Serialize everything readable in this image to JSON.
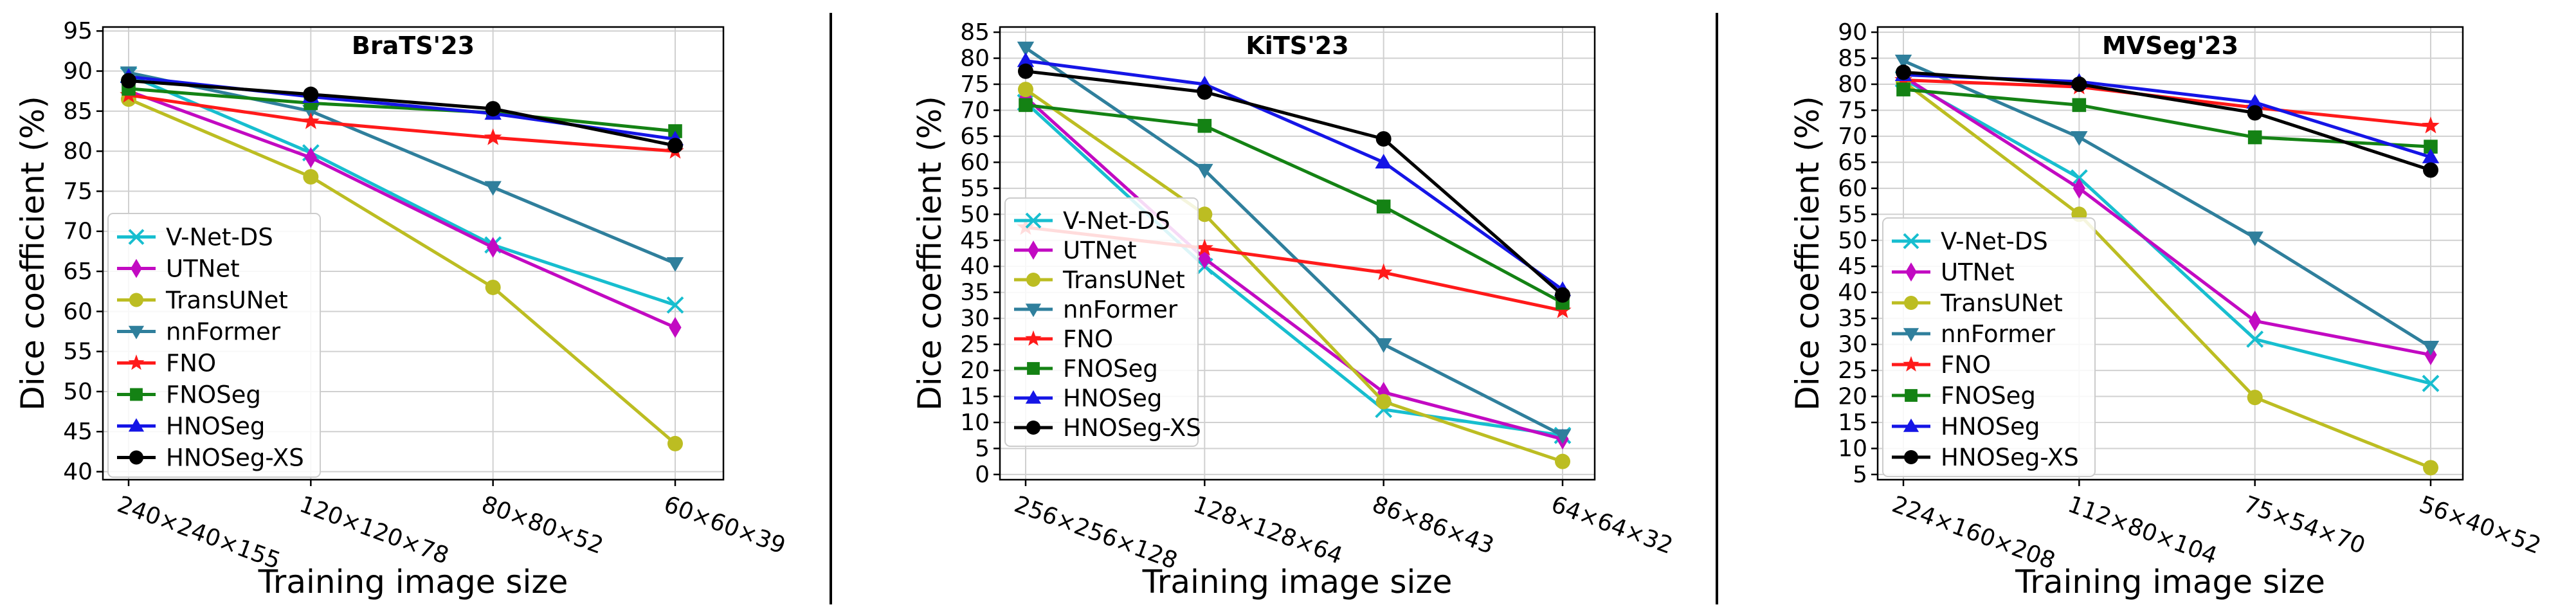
{
  "chart_data": [
    {
      "type": "line",
      "title": "BraTS'23",
      "xlabel": "Training image size",
      "ylabel": "Dice coefficient (%)",
      "categories": [
        "240×240×155",
        "120×120×78",
        "80×80×52",
        "60×60×39"
      ],
      "ylim": [
        39,
        95.5
      ],
      "yticks": [
        40,
        45,
        50,
        55,
        60,
        65,
        70,
        75,
        80,
        85,
        90,
        95
      ],
      "grid": true,
      "legend": "lower-left",
      "series": [
        {
          "name": "V-Net-DS",
          "color": "#17becf",
          "marker": "x",
          "values": [
            89.5,
            79.8,
            68.3,
            60.8
          ]
        },
        {
          "name": "UTNet",
          "color": "#c20ac2",
          "marker": "diamond",
          "values": [
            87.5,
            79.2,
            68.0,
            58.0
          ]
        },
        {
          "name": "TransUNet",
          "color": "#bcbd22",
          "marker": "circle",
          "values": [
            86.5,
            76.8,
            63.0,
            43.5
          ]
        },
        {
          "name": "nnFormer",
          "color": "#2f7f9c",
          "marker": "triangle-down",
          "values": [
            89.8,
            85.0,
            75.5,
            66.0
          ]
        },
        {
          "name": "FNO",
          "color": "#ff1a1a",
          "marker": "star",
          "values": [
            87.0,
            83.7,
            81.7,
            80.0
          ]
        },
        {
          "name": "FNOSeg",
          "color": "#148214",
          "marker": "square",
          "values": [
            87.8,
            86.0,
            84.8,
            82.5
          ]
        },
        {
          "name": "HNOSeg",
          "color": "#1515e6",
          "marker": "triangle-up",
          "values": [
            89.3,
            86.8,
            84.7,
            81.5
          ]
        },
        {
          "name": "HNOSeg-XS",
          "color": "#000000",
          "marker": "circle",
          "values": [
            88.8,
            87.1,
            85.3,
            80.7
          ]
        }
      ]
    },
    {
      "type": "line",
      "title": "KiTS'23",
      "xlabel": "Training image size",
      "ylabel": "Dice coefficient (%)",
      "categories": [
        "256×256×128",
        "128×128×64",
        "86×86×43",
        "64×64×32"
      ],
      "ylim": [
        -1,
        86
      ],
      "yticks": [
        0,
        5,
        10,
        15,
        20,
        25,
        30,
        35,
        40,
        45,
        50,
        55,
        60,
        65,
        70,
        75,
        80,
        85
      ],
      "grid": true,
      "legend": "lower-left",
      "series": [
        {
          "name": "V-Net-DS",
          "color": "#17becf",
          "marker": "x",
          "values": [
            71.5,
            40.0,
            12.5,
            7.5
          ]
        },
        {
          "name": "UTNet",
          "color": "#c20ac2",
          "marker": "diamond",
          "values": [
            72.5,
            41.5,
            15.8,
            6.8
          ]
        },
        {
          "name": "TransUNet",
          "color": "#bcbd22",
          "marker": "circle",
          "values": [
            74.0,
            50.0,
            14.0,
            2.5
          ]
        },
        {
          "name": "nnFormer",
          "color": "#2f7f9c",
          "marker": "triangle-down",
          "values": [
            82.0,
            58.5,
            25.0,
            7.5
          ]
        },
        {
          "name": "FNO",
          "color": "#ff1a1a",
          "marker": "star",
          "values": [
            47.5,
            43.5,
            38.8,
            31.5
          ]
        },
        {
          "name": "FNOSeg",
          "color": "#148214",
          "marker": "square",
          "values": [
            71.0,
            67.0,
            51.5,
            33.0
          ]
        },
        {
          "name": "HNOSeg",
          "color": "#1515e6",
          "marker": "triangle-up",
          "values": [
            79.5,
            75.0,
            60.0,
            35.5
          ]
        },
        {
          "name": "HNOSeg-XS",
          "color": "#000000",
          "marker": "circle",
          "values": [
            77.5,
            73.5,
            64.5,
            34.5
          ]
        }
      ]
    },
    {
      "type": "line",
      "title": "MVSeg'23",
      "xlabel": "Training image size",
      "ylabel": "Dice coefficient (%)",
      "categories": [
        "224×160×208",
        "112×80×104",
        "75×54×70",
        "56×40×52"
      ],
      "ylim": [
        4,
        91
      ],
      "yticks": [
        5,
        10,
        15,
        20,
        25,
        30,
        35,
        40,
        45,
        50,
        55,
        60,
        65,
        70,
        75,
        80,
        85,
        90
      ],
      "grid": true,
      "legend": "lower-left",
      "series": [
        {
          "name": "V-Net-DS",
          "color": "#17becf",
          "marker": "x",
          "values": [
            81.0,
            62.0,
            31.0,
            22.5
          ]
        },
        {
          "name": "UTNet",
          "color": "#c20ac2",
          "marker": "diamond",
          "values": [
            81.5,
            60.0,
            34.5,
            28.0
          ]
        },
        {
          "name": "TransUNet",
          "color": "#bcbd22",
          "marker": "circle",
          "values": [
            80.5,
            55.0,
            19.8,
            6.3
          ]
        },
        {
          "name": "nnFormer",
          "color": "#2f7f9c",
          "marker": "triangle-down",
          "values": [
            84.5,
            69.8,
            50.5,
            29.5
          ]
        },
        {
          "name": "FNO",
          "color": "#ff1a1a",
          "marker": "star",
          "values": [
            80.8,
            79.5,
            75.5,
            72.0
          ]
        },
        {
          "name": "FNOSeg",
          "color": "#148214",
          "marker": "square",
          "values": [
            79.0,
            76.0,
            69.8,
            68.0
          ]
        },
        {
          "name": "HNOSeg",
          "color": "#1515e6",
          "marker": "triangle-up",
          "values": [
            81.8,
            80.5,
            76.5,
            66.0
          ]
        },
        {
          "name": "HNOSeg-XS",
          "color": "#000000",
          "marker": "circle",
          "values": [
            82.3,
            80.0,
            74.5,
            63.5
          ]
        }
      ]
    }
  ]
}
